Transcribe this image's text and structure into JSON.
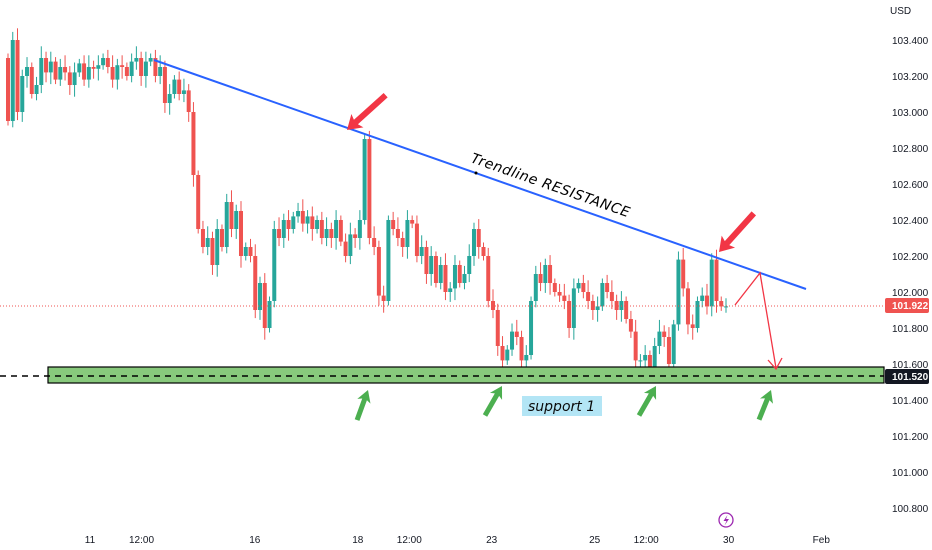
{
  "chart_data": {
    "type": "candlestick",
    "currency": "USD",
    "y_ticks": [
      "103.400",
      "103.200",
      "103.000",
      "102.800",
      "102.600",
      "102.400",
      "102.200",
      "102.000",
      "101.800",
      "101.600",
      "101.400",
      "101.200",
      "101.000",
      "100.800"
    ],
    "x_labels": [
      {
        "day": 0.0,
        "label": "11"
      },
      {
        "day": 0.5,
        "label": "12:00"
      },
      {
        "day": 1.6,
        "label": "16"
      },
      {
        "day": 2.6,
        "label": "18"
      },
      {
        "day": 3.1,
        "label": "12:00"
      },
      {
        "day": 3.9,
        "label": "23"
      },
      {
        "day": 4.9,
        "label": "25"
      },
      {
        "day": 5.4,
        "label": "12:00"
      },
      {
        "day": 6.2,
        "label": "30"
      },
      {
        "day": 7.1,
        "label": "Feb"
      }
    ],
    "last_price": "101.922",
    "support_price": "101.520",
    "candles_start": 103.3,
    "candles_period": 0.09,
    "closes": [
      102.95,
      103.4,
      103.0,
      103.2,
      103.25,
      103.1,
      103.15,
      103.3,
      103.22,
      103.28,
      103.18,
      103.25,
      103.22,
      103.15,
      103.22,
      103.27,
      103.18,
      103.25,
      103.24,
      103.26,
      103.3,
      103.25,
      103.18,
      103.26,
      103.25,
      103.2,
      103.28,
      103.3,
      103.2,
      103.28,
      103.3,
      103.2,
      103.25,
      103.05,
      103.1,
      103.18,
      103.1,
      103.12,
      103.0,
      102.65,
      102.35,
      102.25,
      102.3,
      102.15,
      102.35,
      102.25,
      102.5,
      102.35,
      102.45,
      102.2,
      102.25,
      102.2,
      101.9,
      102.05,
      101.8,
      101.95,
      102.35,
      102.3,
      102.4,
      102.35,
      102.42,
      102.45,
      102.38,
      102.42,
      102.35,
      102.4,
      102.3,
      102.35,
      102.3,
      102.4,
      102.28,
      102.2,
      102.32,
      102.3,
      102.4,
      102.85,
      102.3,
      102.25,
      101.98,
      101.95,
      102.4,
      102.35,
      102.3,
      102.25,
      102.4,
      102.38,
      102.2,
      102.25,
      102.1,
      102.2,
      102.05,
      102.15,
      102.0,
      102.02,
      102.15,
      102.05,
      102.1,
      102.2,
      102.35,
      102.25,
      102.2,
      101.95,
      101.9,
      101.7,
      101.62,
      101.68,
      101.78,
      101.75,
      101.62,
      101.65,
      101.95,
      102.1,
      102.05,
      102.15,
      102.05,
      102.0,
      101.98,
      101.95,
      101.8,
      102.02,
      102.05,
      102.0,
      101.95,
      101.9,
      101.92,
      102.05,
      102.0,
      101.95,
      101.9,
      101.95,
      101.85,
      101.78,
      101.62,
      101.62,
      101.65,
      101.58,
      101.7,
      101.78,
      101.75,
      101.6,
      101.82,
      102.18,
      102.02,
      101.82,
      101.8,
      101.95,
      101.98,
      101.92,
      102.18,
      101.95,
      101.92,
      101.92
    ],
    "trendline": {
      "label": "Trendline  RESISTANCE",
      "from": {
        "day": 0.5,
        "price": 103.28
      },
      "to": {
        "day": 6.6,
        "price": 102.03
      }
    },
    "support_zone": {
      "label": "support 1",
      "high": 101.57,
      "low": 101.46,
      "line": 101.52
    },
    "annotations": [
      "red arrows at trendline touches",
      "green arrows at support touches",
      "red projected path down to support"
    ]
  },
  "colors": {
    "up": "#26a69a",
    "down": "#ef5350",
    "trend": "#2962ff",
    "zone": "#88c97c",
    "support_box": "#b3e5f5",
    "arrow_red": "#f23645",
    "arrow_green": "#4caf50"
  }
}
